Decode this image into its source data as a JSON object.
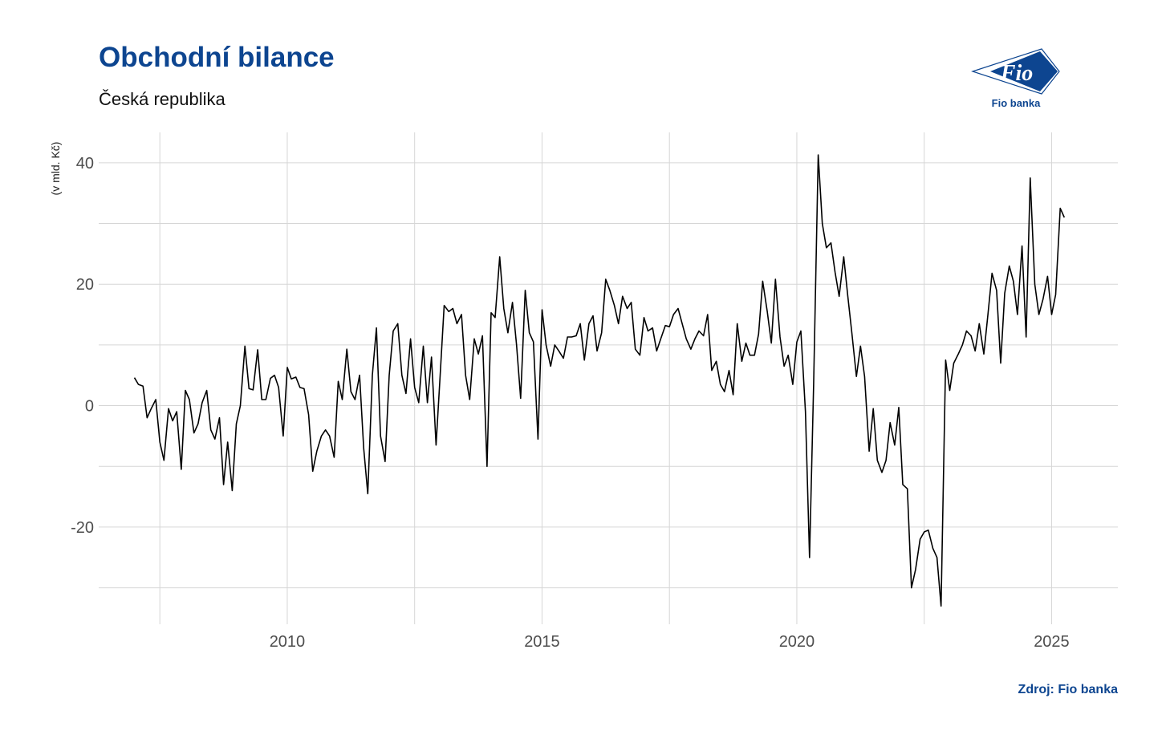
{
  "header": {
    "title": "Obchodní bilance",
    "subtitle": "Česká republika"
  },
  "logo": {
    "text": "Fio banka",
    "mark_text": "Fio",
    "color": "#0d4590"
  },
  "source": "Zdroj: Fio banka",
  "chart_data": {
    "type": "line",
    "title": "Obchodní bilance",
    "subtitle": "Česká republika",
    "ylabel": "(v mld. Kč)",
    "xlabel": "",
    "xlim": [
      2006.3,
      2026.3
    ],
    "ylim": [
      -36,
      45
    ],
    "x_ticks": [
      2010,
      2015,
      2020,
      2025
    ],
    "y_ticks": [
      -20,
      0,
      20,
      40
    ],
    "grid": true,
    "line_color": "#000000",
    "series": [
      {
        "x": [
          2007.0,
          2007.08,
          2007.17,
          2007.25,
          2007.33,
          2007.42,
          2007.5,
          2007.58,
          2007.67,
          2007.75,
          2007.83,
          2007.92,
          2008.0,
          2008.08,
          2008.17,
          2008.25,
          2008.33,
          2008.42,
          2008.5,
          2008.58,
          2008.67,
          2008.75,
          2008.83,
          2008.92,
          2009.0,
          2009.08,
          2009.17,
          2009.25,
          2009.33,
          2009.42,
          2009.5,
          2009.58,
          2009.67,
          2009.75,
          2009.83,
          2009.92,
          2010.0,
          2010.08,
          2010.17,
          2010.25,
          2010.33,
          2010.42,
          2010.5,
          2010.58,
          2010.67,
          2010.75,
          2010.83,
          2010.92,
          2011.0,
          2011.08,
          2011.17,
          2011.25,
          2011.33,
          2011.42,
          2011.5,
          2011.58,
          2011.67,
          2011.75,
          2011.83,
          2011.92,
          2012.0,
          2012.08,
          2012.17,
          2012.25,
          2012.33,
          2012.42,
          2012.5,
          2012.58,
          2012.67,
          2012.75,
          2012.83,
          2012.92,
          2013.0,
          2013.08,
          2013.17,
          2013.25,
          2013.33,
          2013.42,
          2013.5,
          2013.58,
          2013.67,
          2013.75,
          2013.83,
          2013.92,
          2014.0,
          2014.08,
          2014.17,
          2014.25,
          2014.33,
          2014.42,
          2014.5,
          2014.58,
          2014.67,
          2014.75,
          2014.83,
          2014.92,
          2015.0,
          2015.08,
          2015.17,
          2015.25,
          2015.33,
          2015.42,
          2015.5,
          2015.58,
          2015.67,
          2015.75,
          2015.83,
          2015.92,
          2016.0,
          2016.08,
          2016.17,
          2016.25,
          2016.33,
          2016.42,
          2016.5,
          2016.58,
          2016.67,
          2016.75,
          2016.83,
          2016.92,
          2017.0,
          2017.08,
          2017.17,
          2017.25,
          2017.33,
          2017.42,
          2017.5,
          2017.58,
          2017.67,
          2017.75,
          2017.83,
          2017.92,
          2018.0,
          2018.08,
          2018.17,
          2018.25,
          2018.33,
          2018.42,
          2018.5,
          2018.58,
          2018.67,
          2018.75,
          2018.83,
          2018.92,
          2019.0,
          2019.08,
          2019.17,
          2019.25,
          2019.33,
          2019.42,
          2019.5,
          2019.58,
          2019.67,
          2019.75,
          2019.83,
          2019.92,
          2020.0,
          2020.08,
          2020.17,
          2020.25,
          2020.33,
          2020.42,
          2020.5,
          2020.58,
          2020.67,
          2020.75,
          2020.83,
          2020.92,
          2021.0,
          2021.08,
          2021.17,
          2021.25,
          2021.33,
          2021.42,
          2021.5,
          2021.58,
          2021.67,
          2021.75,
          2021.83,
          2021.92,
          2022.0,
          2022.08,
          2022.17,
          2022.25,
          2022.33,
          2022.42,
          2022.5,
          2022.58,
          2022.67,
          2022.75,
          2022.83,
          2022.92,
          2023.0,
          2023.08,
          2023.17,
          2023.25,
          2023.33,
          2023.42,
          2023.5,
          2023.58,
          2023.67,
          2023.75,
          2023.83,
          2023.92,
          2024.0,
          2024.08,
          2024.17,
          2024.25,
          2024.33,
          2024.42,
          2024.5,
          2024.58,
          2024.67,
          2024.75,
          2024.83,
          2024.92,
          2025.0,
          2025.08,
          2025.17,
          2025.25
        ],
        "values": [
          4.6,
          3.5,
          3.2,
          -2.0,
          -0.5,
          1.0,
          -6.0,
          -9.0,
          -0.5,
          -2.5,
          -1.0,
          -10.5,
          2.5,
          1.0,
          -4.5,
          -3.0,
          0.5,
          2.5,
          -4.0,
          -5.5,
          -2.0,
          -13.0,
          -6.0,
          -14.0,
          -3.0,
          0.0,
          9.8,
          2.8,
          2.6,
          9.2,
          1.0,
          1.0,
          4.5,
          5.0,
          3.0,
          -5.0,
          6.3,
          4.4,
          4.7,
          3.0,
          2.8,
          -1.5,
          -10.8,
          -7.5,
          -5.0,
          -4.0,
          -5.0,
          -8.5,
          4.0,
          1.0,
          9.3,
          2.3,
          1.0,
          5.0,
          -7.0,
          -14.5,
          5.0,
          12.8,
          -5.0,
          -9.2,
          5.0,
          12.3,
          13.5,
          5.0,
          2.0,
          11.0,
          3.0,
          0.5,
          9.8,
          0.5,
          8.0,
          -6.5,
          5.0,
          16.5,
          15.5,
          16.0,
          13.5,
          15.0,
          5.0,
          1.0,
          11.0,
          8.5,
          11.5,
          -10.0,
          15.3,
          14.5,
          24.5,
          16.0,
          12.0,
          17.0,
          10.0,
          1.2,
          19.0,
          12.0,
          10.5,
          -5.5,
          15.8,
          10.0,
          6.5,
          10.0,
          9.0,
          7.8,
          11.3,
          11.3,
          11.5,
          13.5,
          7.5,
          13.5,
          14.8,
          9.0,
          12.0,
          20.8,
          19.0,
          16.5,
          13.5,
          18.0,
          16.0,
          17.0,
          9.3,
          8.3,
          14.5,
          12.3,
          12.8,
          9.0,
          11.0,
          13.2,
          13.0,
          15.0,
          16.0,
          13.5,
          11.0,
          9.3,
          11.0,
          12.3,
          11.5,
          15.0,
          5.8,
          7.3,
          3.5,
          2.3,
          5.8,
          1.8,
          13.5,
          7.3,
          10.3,
          8.3,
          8.3,
          11.8,
          20.5,
          15.5,
          10.3,
          20.8,
          11.3,
          6.5,
          8.3,
          3.5,
          10.5,
          12.3,
          -1.0,
          -25.0,
          3.5,
          41.3,
          30.0,
          26.0,
          26.8,
          22.0,
          18.0,
          24.5,
          18.0,
          12.0,
          4.8,
          9.8,
          4.8,
          -7.5,
          -0.5,
          -9.0,
          -11.0,
          -9.0,
          -2.8,
          -6.5,
          -0.3,
          -13.0,
          -13.7,
          -30.0,
          -27.0,
          -22.0,
          -20.8,
          -20.5,
          -23.5,
          -25.0,
          -33.0,
          7.5,
          2.5,
          7.0,
          8.5,
          10.0,
          12.3,
          11.5,
          9.0,
          13.5,
          8.5,
          15.0,
          21.8,
          19.0,
          7.0,
          18.5,
          23.0,
          20.5,
          15.0,
          26.3,
          11.3,
          37.5,
          20.0,
          15.0,
          17.5,
          21.3,
          15.0,
          18.3,
          32.5,
          31.0
        ]
      }
    ]
  }
}
